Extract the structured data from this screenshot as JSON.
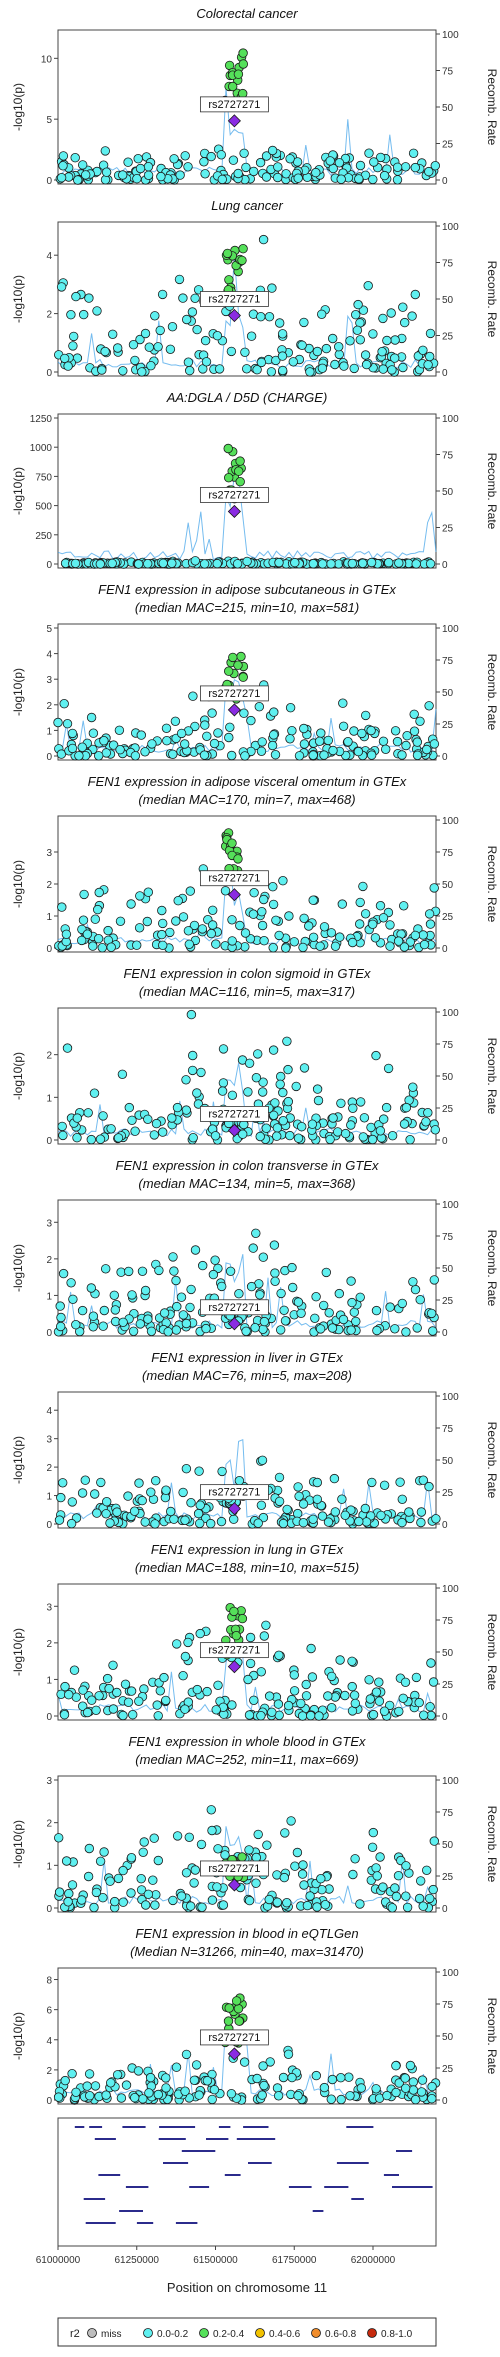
{
  "figure": {
    "ylabel_left": "-log10(p)",
    "ylabel_right": "Recomb. Rate",
    "lead_snp": "rs2727271",
    "xlabel": "Position on chromosome 11"
  },
  "legend": {
    "title": "r2",
    "items": [
      {
        "label": "miss",
        "color": "#bdbdbd"
      },
      {
        "label": "0.0-0.2",
        "color": "#5ff0f0"
      },
      {
        "label": "0.2-0.4",
        "color": "#55e05a"
      },
      {
        "label": "0.4-0.6",
        "color": "#f2c200"
      },
      {
        "label": "0.6-0.8",
        "color": "#f08c2a"
      },
      {
        "label": "0.8-1.0",
        "color": "#c62a0e"
      }
    ]
  },
  "chart_data": [
    {
      "type": "scatter",
      "title": "Colorectal cancer",
      "subtitle": "",
      "ylim": [
        0,
        12
      ],
      "yticks": [
        0,
        5,
        10
      ],
      "peak": 10.8,
      "background": 1.2
    },
    {
      "type": "scatter",
      "title": "Lung cancer",
      "subtitle": "",
      "ylim": [
        0,
        5
      ],
      "yticks": [
        0,
        2,
        4
      ],
      "peak": 4.3,
      "background": 1.6
    },
    {
      "type": "scatter",
      "title": "AA:DGLA / D5D (CHARGE)",
      "subtitle": "",
      "ylim": [
        0,
        1250
      ],
      "yticks": [
        0,
        250,
        500,
        750,
        1000,
        1250
      ],
      "peak": 1000,
      "background": 10
    },
    {
      "type": "scatter",
      "title": "FEN1 expression in adipose subcutaneous in GTEx",
      "subtitle": "(median MAC=215, min=10, max=581)",
      "ylim": [
        0,
        5
      ],
      "yticks": [
        0,
        1,
        2,
        3,
        4,
        5
      ],
      "peak": 4.0,
      "background": 1.0
    },
    {
      "type": "scatter",
      "title": "FEN1 expression in adipose visceral omentum in GTEx",
      "subtitle": "(median MAC=170, min=7, max=468)",
      "ylim": [
        0,
        4
      ],
      "yticks": [
        0,
        1,
        2,
        3
      ],
      "peak": 3.7,
      "background": 1.0
    },
    {
      "type": "scatter",
      "title": "FEN1 expression in colon sigmoid in GTEx",
      "subtitle": "(median MAC=116, min=5, max=317)",
      "ylim": [
        0,
        3
      ],
      "yticks": [
        0,
        1,
        2
      ],
      "peak": 0.5,
      "background": 1.0
    },
    {
      "type": "scatter",
      "title": "FEN1 expression in colon transverse in GTEx",
      "subtitle": "(median MAC=134, min=5, max=368)",
      "ylim": [
        0,
        3.5
      ],
      "yticks": [
        0,
        1,
        2,
        3
      ],
      "peak": 0.5,
      "background": 1.0
    },
    {
      "type": "scatter",
      "title": "FEN1 expression in liver in GTEx",
      "subtitle": "(median MAC=76, min=5, max=208)",
      "ylim": [
        0,
        4.5
      ],
      "yticks": [
        0,
        1,
        2,
        3,
        4
      ],
      "peak": 1.2,
      "background": 1.0
    },
    {
      "type": "scatter",
      "title": "FEN1 expression in lung in GTEx",
      "subtitle": "(median MAC=188, min=10, max=515)",
      "ylim": [
        0,
        3.5
      ],
      "yticks": [
        0,
        1,
        2,
        3
      ],
      "peak": 3.0,
      "background": 1.0
    },
    {
      "type": "scatter",
      "title": "FEN1 expression in whole blood in GTEx",
      "subtitle": "(median MAC=252, min=11, max=669)",
      "ylim": [
        0,
        3
      ],
      "yticks": [
        0,
        1,
        2,
        3
      ],
      "peak": 1.2,
      "background": 1.0
    },
    {
      "type": "scatter",
      "title": "FEN1 expression in blood in eQTLGen",
      "subtitle": "(Median N=31266, min=40, max=31470)",
      "ylim": [
        0,
        8.5
      ],
      "yticks": [
        0,
        2,
        4,
        6,
        8
      ],
      "peak": 6.8,
      "background": 1.3
    }
  ],
  "recomb_axis": {
    "ticks": [
      0,
      25,
      50,
      75,
      100
    ]
  },
  "x_axis": {
    "ticks": [
      61000000,
      61250000,
      61500000,
      61750000,
      62000000
    ],
    "xlim": [
      61000000,
      62200000
    ]
  }
}
